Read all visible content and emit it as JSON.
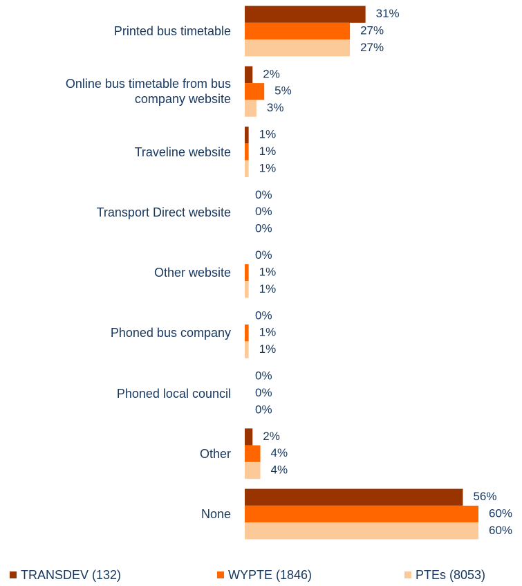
{
  "chart_data": {
    "type": "bar",
    "orientation": "horizontal",
    "categories": [
      "Printed bus timetable",
      "Online bus timetable from bus\ncompany website",
      "Traveline website",
      "Transport Direct website",
      "Other website",
      "Phoned bus company",
      "Phoned local council",
      "Other",
      "None"
    ],
    "series": [
      {
        "name": "TRANSDEV (132)",
        "color": "#993300",
        "values": [
          31,
          2,
          1,
          0,
          0,
          0,
          0,
          2,
          56
        ],
        "value_labels": [
          "31%",
          "2%",
          "1%",
          "0%",
          "0%",
          "0%",
          "0%",
          "2%",
          "56%"
        ]
      },
      {
        "name": "WYPTE (1846)",
        "color": "#ff6600",
        "values": [
          27,
          5,
          1,
          0,
          1,
          1,
          0,
          4,
          60
        ],
        "value_labels": [
          "27%",
          "5%",
          "1%",
          "0%",
          "1%",
          "1%",
          "0%",
          "4%",
          "60%"
        ]
      },
      {
        "name": "PTEs (8053)",
        "color": "#fcc999",
        "values": [
          27,
          3,
          1,
          0,
          1,
          1,
          0,
          4,
          60
        ],
        "value_labels": [
          "27%",
          "3%",
          "1%",
          "0%",
          "1%",
          "1%",
          "0%",
          "4%",
          "60%"
        ]
      }
    ],
    "legend": "bottom"
  }
}
